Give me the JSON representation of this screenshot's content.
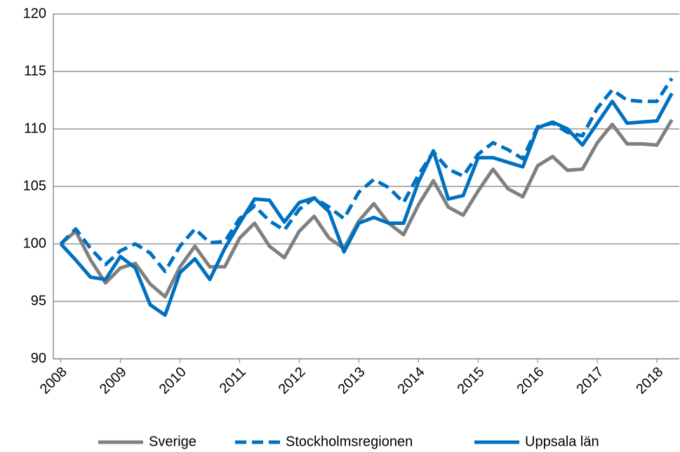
{
  "chart_data": {
    "type": "line",
    "categories": [
      "2008",
      null,
      null,
      null,
      "2009",
      null,
      null,
      null,
      "2010",
      null,
      null,
      null,
      "2011",
      null,
      null,
      null,
      "2012",
      null,
      null,
      null,
      "2013",
      null,
      null,
      null,
      "2014",
      null,
      null,
      null,
      "2015",
      null,
      null,
      null,
      "2016",
      null,
      null,
      null,
      "2017",
      null,
      null,
      null,
      "2018",
      null
    ],
    "series": [
      {
        "name": "Sverige",
        "color": "#808080",
        "dashed": false,
        "values": [
          100,
          101.1,
          98.6,
          96.6,
          97.9,
          98.3,
          96.5,
          95.4,
          98.0,
          99.8,
          98.0,
          98.0,
          100.5,
          101.8,
          99.8,
          98.8,
          101.1,
          102.4,
          100.5,
          99.6,
          102.0,
          103.5,
          101.8,
          100.8,
          103.4,
          105.5,
          103.2,
          102.5,
          104.6,
          106.5,
          104.8,
          104.1,
          106.8,
          107.6,
          106.4,
          106.5,
          108.8,
          110.4,
          108.7,
          108.7,
          108.6,
          110.8
        ]
      },
      {
        "name": "Stockholmsregionen",
        "color": "#0070c0",
        "dashed": true,
        "values": [
          100,
          101.3,
          99.6,
          98.2,
          99.4,
          100.0,
          99.2,
          97.6,
          99.8,
          101.3,
          100.1,
          100.2,
          102.2,
          103.3,
          102.0,
          101.2,
          103.0,
          104.0,
          103.2,
          102.2,
          104.5,
          105.6,
          104.9,
          103.6,
          106.0,
          108.0,
          106.5,
          105.9,
          107.8,
          108.8,
          108.2,
          107.4,
          110.2,
          110.5,
          109.7,
          109.4,
          111.8,
          113.4,
          112.5,
          112.4,
          112.4,
          114.4
        ]
      },
      {
        "name": "Uppsala län",
        "color": "#0070c0",
        "dashed": false,
        "values": [
          100,
          98.6,
          97.1,
          96.9,
          98.9,
          97.9,
          94.7,
          93.8,
          97.5,
          98.7,
          96.9,
          99.6,
          101.8,
          103.9,
          103.8,
          101.9,
          103.6,
          104.0,
          102.8,
          99.3,
          101.8,
          102.3,
          101.8,
          101.8,
          105.4,
          108.1,
          103.9,
          104.2,
          107.5,
          107.5,
          107.1,
          106.7,
          110.1,
          110.6,
          110.0,
          108.6,
          110.5,
          112.4,
          110.5,
          110.6,
          110.7,
          113.1
        ]
      }
    ],
    "ylim": [
      90,
      120
    ],
    "yticks": [
      90,
      95,
      100,
      105,
      110,
      115,
      120
    ],
    "grid": true,
    "legend": "bottom"
  }
}
